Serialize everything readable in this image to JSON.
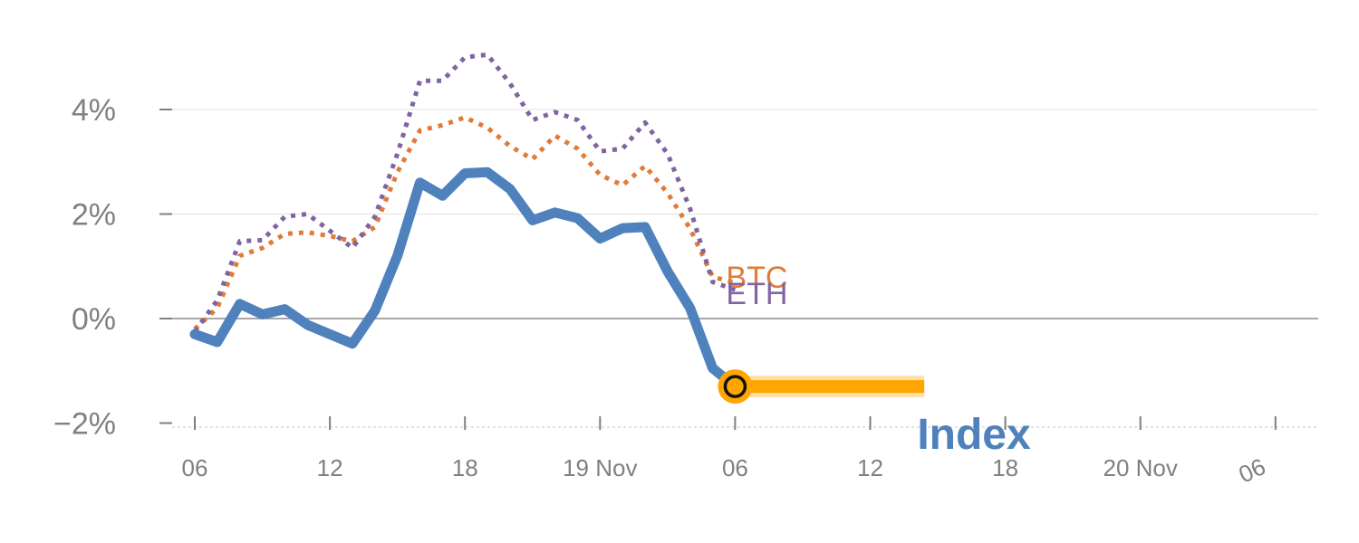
{
  "chart_data": {
    "type": "line",
    "title": "",
    "xlabel": "",
    "ylabel": "",
    "ylim": [
      -2.2,
      5.5
    ],
    "xlim": [
      -0.5,
      25.0
    ],
    "y_ticks": [
      {
        "value": 4,
        "label": "4%"
      },
      {
        "value": 2,
        "label": "2%"
      },
      {
        "value": 0,
        "label": "0%"
      },
      {
        "value": -2,
        "label": "−2%"
      }
    ],
    "x_ticks": [
      {
        "pos": 0,
        "label": "06"
      },
      {
        "pos": 3,
        "label": "12"
      },
      {
        "pos": 6,
        "label": "18"
      },
      {
        "pos": 9,
        "label": "19 Nov"
      },
      {
        "pos": 12,
        "label": "06"
      },
      {
        "pos": 15,
        "label": "12"
      },
      {
        "pos": 18,
        "label": "18"
      },
      {
        "pos": 21,
        "label": "20 Nov"
      },
      {
        "pos": 24,
        "label": "06"
      }
    ],
    "series": [
      {
        "name": "Index",
        "label": "Index",
        "style": "solid",
        "color": "#4f81bd",
        "x": [
          0,
          0.5,
          1,
          1.5,
          2,
          2.5,
          3,
          3.5,
          4,
          4.5,
          5,
          5.5,
          6,
          6.5,
          7,
          7.5,
          8,
          8.5,
          9,
          9.5,
          10,
          10.5,
          11,
          11.5,
          12
        ],
        "values": [
          -0.3,
          -0.45,
          0.28,
          0.08,
          0.18,
          -0.12,
          -0.3,
          -0.48,
          0.15,
          1.2,
          2.6,
          2.35,
          2.78,
          2.8,
          2.48,
          1.88,
          2.03,
          1.92,
          1.53,
          1.73,
          1.75,
          0.9,
          0.2,
          -0.95,
          -1.3
        ]
      },
      {
        "name": "BTC",
        "label": "BTC",
        "style": "dotted",
        "color": "#e07b39",
        "x": [
          0,
          0.5,
          1,
          1.5,
          2,
          2.5,
          3,
          3.5,
          4,
          4.5,
          5,
          5.5,
          6,
          6.5,
          7,
          7.5,
          8,
          8.5,
          9,
          9.5,
          10,
          10.5,
          11,
          11.5,
          12
        ],
        "values": [
          -0.2,
          0.2,
          1.2,
          1.35,
          1.62,
          1.65,
          1.58,
          1.48,
          1.75,
          2.8,
          3.6,
          3.7,
          3.85,
          3.65,
          3.3,
          3.05,
          3.5,
          3.25,
          2.75,
          2.55,
          2.92,
          2.4,
          1.72,
          0.8,
          0.68
        ]
      },
      {
        "name": "ETH",
        "label": "ETH",
        "style": "dotted",
        "color": "#8064a2",
        "x": [
          0,
          0.5,
          1,
          1.5,
          2,
          2.5,
          3,
          3.5,
          4,
          4.5,
          5,
          5.5,
          6,
          6.5,
          7,
          7.5,
          8,
          8.5,
          9,
          9.5,
          10,
          10.5,
          11,
          11.5,
          12
        ],
        "values": [
          -0.25,
          0.35,
          1.48,
          1.5,
          1.95,
          2.0,
          1.68,
          1.35,
          1.95,
          3.15,
          4.55,
          4.55,
          5.0,
          5.05,
          4.5,
          3.8,
          3.95,
          3.8,
          3.2,
          3.25,
          3.75,
          3.15,
          2.1,
          0.7,
          0.55
        ]
      }
    ],
    "highlight": {
      "series": "Index",
      "x": 12,
      "value": -1.3,
      "range_end_x": 16.2,
      "color": "#ffa500"
    }
  }
}
